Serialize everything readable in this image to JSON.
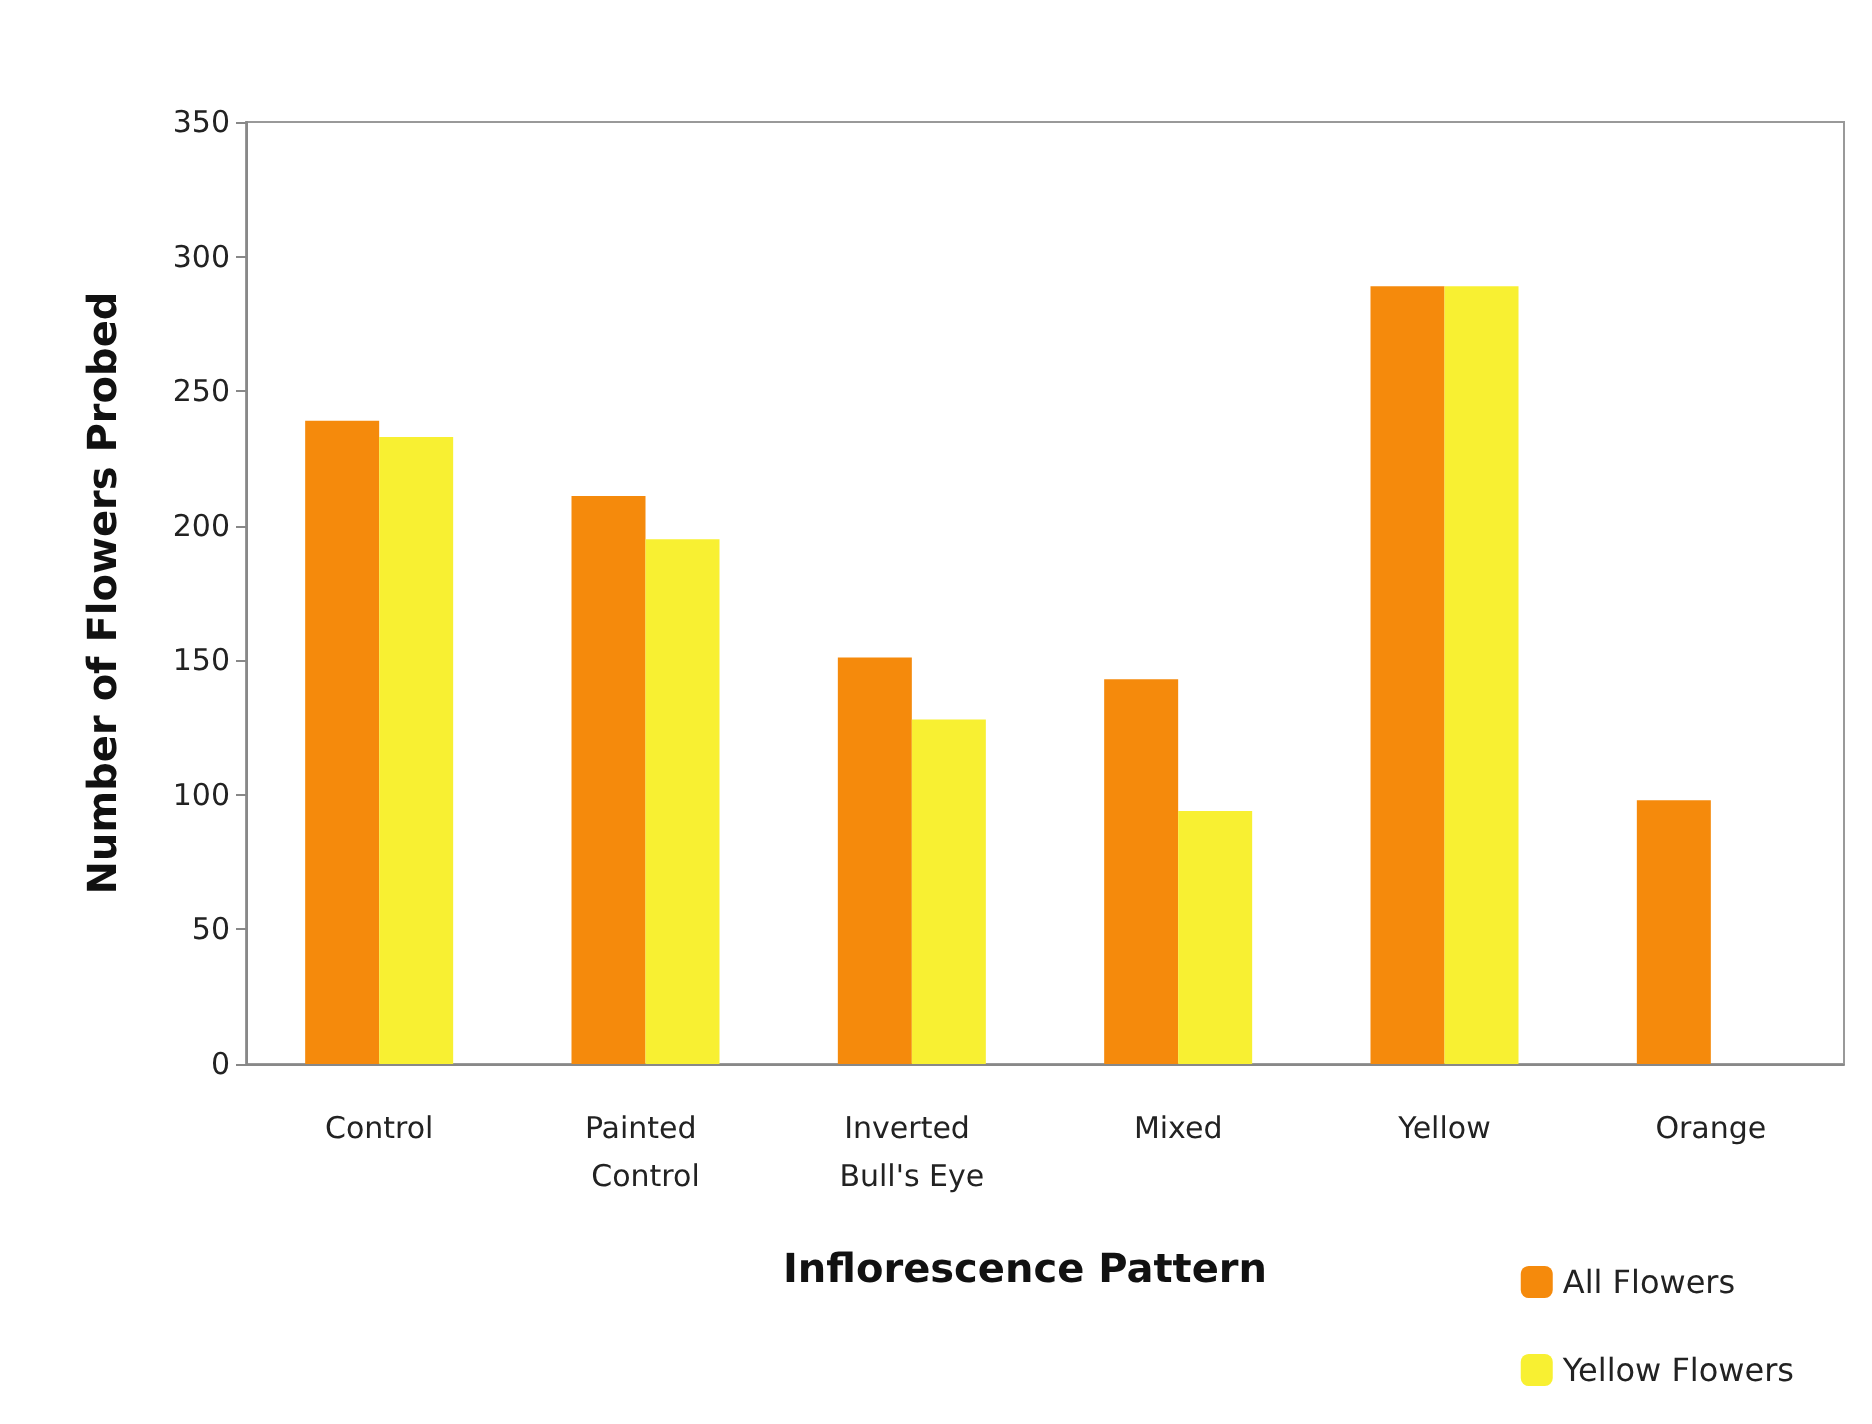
{
  "chart_data": {
    "type": "bar",
    "xlabel": "Inflorescence Pattern",
    "ylabel": "Number of Flowers Probed",
    "categories": [
      "Control",
      "Painted Control",
      "Inverted Bull's Eye",
      "Mixed",
      "Yellow",
      "Orange"
    ],
    "series": [
      {
        "name": "All Flowers",
        "color": "#f58a0c",
        "values": [
          239,
          211,
          151,
          143,
          289,
          98
        ]
      },
      {
        "name": "Yellow Flowers",
        "color": "#f8f032",
        "values": [
          233,
          195,
          128,
          94,
          289,
          0
        ]
      }
    ],
    "ylim": [
      0,
      350
    ],
    "yticks": [
      0,
      50,
      100,
      150,
      200,
      250,
      300,
      350
    ],
    "grid": false,
    "legend": "bottom right"
  }
}
